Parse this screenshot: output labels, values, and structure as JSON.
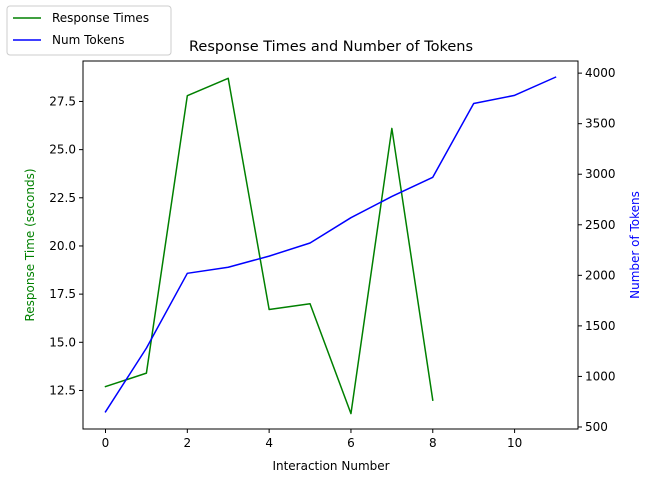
{
  "chart_data": {
    "type": "line",
    "title": "Response Times and Number of Tokens",
    "xlabel": "Interaction Number",
    "ylabel_left": "Response Time (seconds)",
    "ylabel_right": "Number of Tokens",
    "xlim": [
      -0.55,
      11.55
    ],
    "ylim_left": [
      10.5,
      29.6
    ],
    "ylim_right": [
      480,
      4120
    ],
    "x_ticks": [
      0,
      2,
      4,
      6,
      8,
      10
    ],
    "y_left_ticks": [
      12.5,
      15.0,
      17.5,
      20.0,
      22.5,
      25.0,
      27.5
    ],
    "y_right_ticks": [
      500,
      1000,
      1500,
      2000,
      2500,
      3000,
      3500,
      4000
    ],
    "grid": false,
    "legend_position": "top-left (outside plot)",
    "series": [
      {
        "name": "Response Times",
        "axis": "left",
        "color": "#008000",
        "x": [
          0,
          1,
          2,
          3,
          4,
          5,
          6,
          7,
          8
        ],
        "values": [
          12.7,
          13.4,
          27.8,
          28.7,
          16.7,
          17.0,
          11.3,
          26.1,
          12.0
        ]
      },
      {
        "name": "Num Tokens",
        "axis": "right",
        "color": "#0000ff",
        "x": [
          0,
          1,
          2,
          3,
          4,
          5,
          6,
          7,
          8,
          9,
          10,
          11
        ],
        "values": [
          650,
          1280,
          2020,
          2080,
          2190,
          2320,
          2570,
          2780,
          2970,
          3700,
          3780,
          3960
        ]
      }
    ]
  },
  "colors": {
    "left_axis_label": "#008000",
    "right_axis_label": "#0000ff",
    "axes": "#000000"
  }
}
